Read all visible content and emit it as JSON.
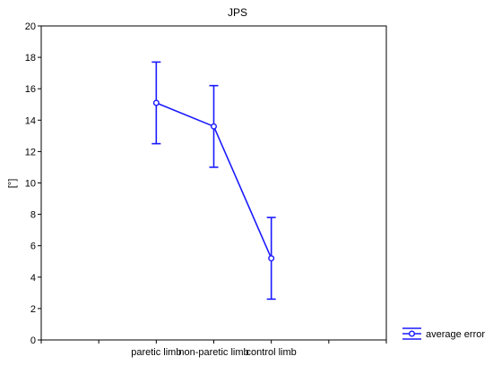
{
  "chart_data": {
    "type": "line",
    "title": "JPS",
    "xlabel": "",
    "ylabel": "[°]",
    "categories": [
      "paretic limb",
      "non-paretic limb",
      "control limb"
    ],
    "ylim": [
      0,
      20
    ],
    "yticks": [
      0,
      2,
      4,
      6,
      8,
      10,
      12,
      14,
      16,
      18,
      20
    ],
    "grid": false,
    "legend_position": "bottom-right",
    "series": [
      {
        "name": "average error",
        "values": [
          15.1,
          13.6,
          5.2
        ],
        "error_low": [
          12.5,
          11.0,
          2.6
        ],
        "error_high": [
          17.7,
          16.2,
          7.8
        ]
      }
    ]
  },
  "colors": {
    "series": "#1a1aff",
    "axis": "#000000"
  }
}
